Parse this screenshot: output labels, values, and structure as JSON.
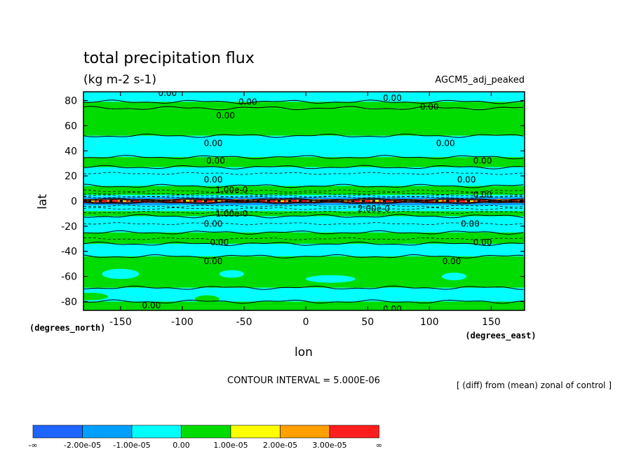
{
  "chart_data": {
    "type": "heatmap",
    "title": "total precipitation flux",
    "units": "(kg m-2 s-1)",
    "dataset": "AGCM5_adj_peaked",
    "xlabel": "lon",
    "ylabel": "lat",
    "x_unit_label": "(degrees_east)",
    "y_unit_label": "(degrees_north)",
    "xlim": [
      -180,
      177
    ],
    "ylim": [
      -87,
      87
    ],
    "xticks": [
      -150,
      -100,
      -50,
      0,
      50,
      100,
      150
    ],
    "yticks": [
      -80,
      -60,
      -40,
      -20,
      0,
      20,
      40,
      60,
      80
    ],
    "contour_interval_text": "CONTOUR INTERVAL = 5.000E-06",
    "note": "[ (diff) from (mean) zonal of control ]",
    "contour_labels": [
      {
        "text": "0.00",
        "lon": -112,
        "lat": 86
      },
      {
        "text": "0.00",
        "lon": -47,
        "lat": 79
      },
      {
        "text": "0.00",
        "lon": 70,
        "lat": 82
      },
      {
        "text": "0.00",
        "lon": 100,
        "lat": 75
      },
      {
        "text": "0.00",
        "lon": -65,
        "lat": 68
      },
      {
        "text": "0.00",
        "lon": -75,
        "lat": 46
      },
      {
        "text": "0.00",
        "lon": 113,
        "lat": 46
      },
      {
        "text": "0.00",
        "lon": -73,
        "lat": 32
      },
      {
        "text": "0.00",
        "lon": 143,
        "lat": 32
      },
      {
        "text": "0.00",
        "lon": -75,
        "lat": 17
      },
      {
        "text": "0.00",
        "lon": 130,
        "lat": 17
      },
      {
        "text": "0.00",
        "lon": 143,
        "lat": 5
      },
      {
        "text": "1.00e-0",
        "lon": -60,
        "lat": 9
      },
      {
        "text": "2.00e-0",
        "lon": 55,
        "lat": -6
      },
      {
        "text": "1.00e-0",
        "lon": -60,
        "lat": -10
      },
      {
        "text": "0.00",
        "lon": -75,
        "lat": -18
      },
      {
        "text": "0.00",
        "lon": 133,
        "lat": -18
      },
      {
        "text": "0.00",
        "lon": -70,
        "lat": -33
      },
      {
        "text": "0.00",
        "lon": 143,
        "lat": -33
      },
      {
        "text": "0.00",
        "lon": -75,
        "lat": -48
      },
      {
        "text": "0.00",
        "lon": 118,
        "lat": -48
      },
      {
        "text": "0.00",
        "lon": -125,
        "lat": -83
      },
      {
        "text": "0.00",
        "lon": 70,
        "lat": -86
      }
    ],
    "colorbar": {
      "colors": [
        "#1e64ff",
        "#00a0ff",
        "#00ffff",
        "#00dc00",
        "#ffff00",
        "#ffa000",
        "#ff1e1e"
      ],
      "labels": [
        "-∞",
        "-2.00e-05",
        "-1.00e-05",
        "0.00",
        "1.00e-05",
        "2.00e-05",
        "3.00e-05",
        "∞"
      ]
    }
  }
}
